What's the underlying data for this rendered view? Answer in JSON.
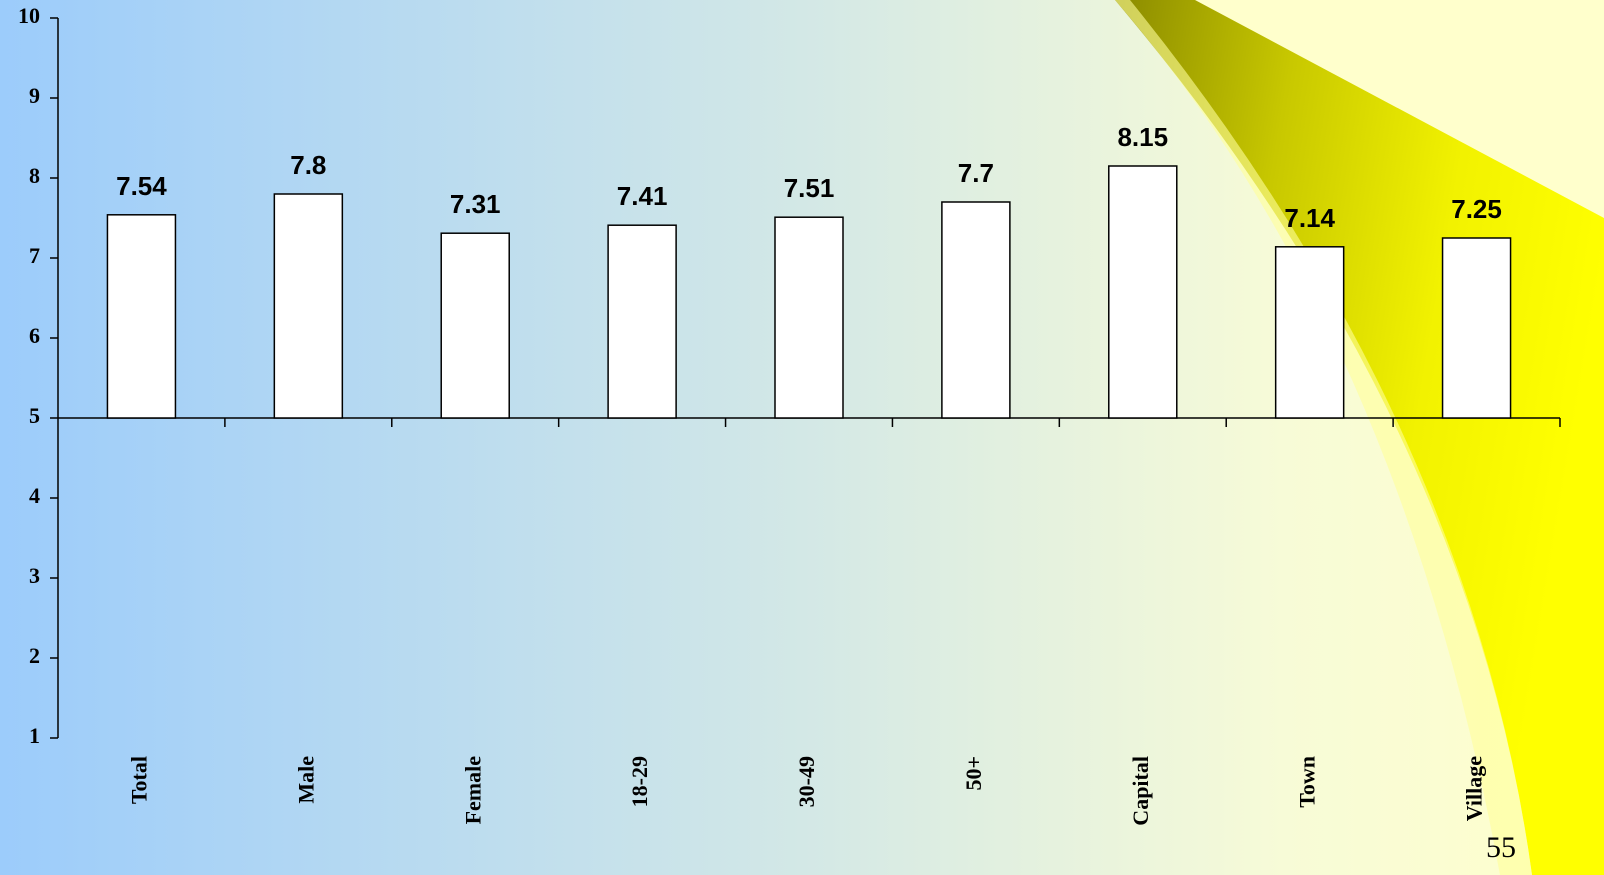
{
  "chart_data": {
    "type": "bar",
    "categories": [
      "Total",
      "Male",
      "Female",
      "18-29",
      "30-49",
      "50+",
      "Capital",
      "Town",
      "Village"
    ],
    "values": [
      7.54,
      7.8,
      7.31,
      7.41,
      7.51,
      7.7,
      8.15,
      7.14,
      7.25
    ],
    "color": "#ffffff",
    "ylim": [
      1,
      10
    ],
    "yticks": [
      1,
      2,
      3,
      4,
      5,
      6,
      7,
      8,
      9,
      10
    ],
    "x_axis_crosses": 5
  },
  "slide": {
    "page_number": "55"
  }
}
